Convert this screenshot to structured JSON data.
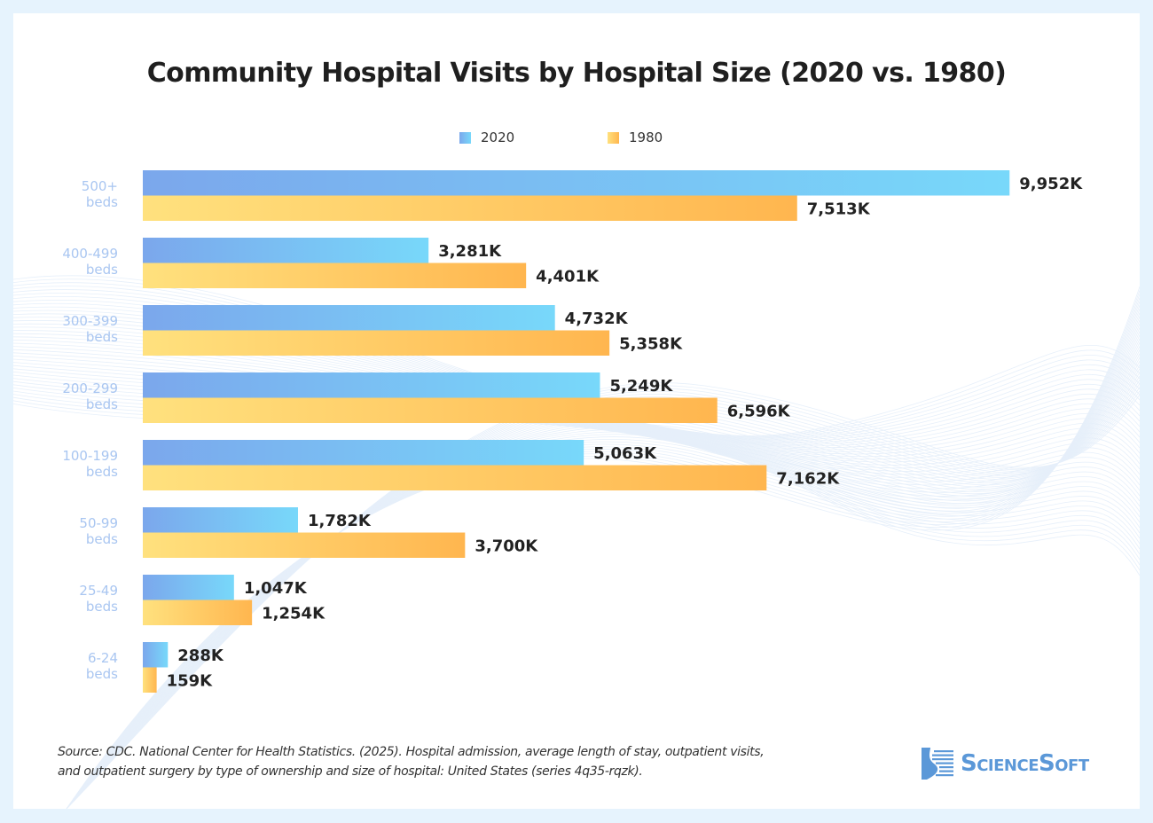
{
  "chart_data": {
    "type": "bar",
    "orientation": "horizontal",
    "title": "Community Hospital Visits by Hospital Size (2020 vs. 1980)",
    "xlabel": "",
    "ylabel": "",
    "unit_suffix": "K",
    "categories": [
      "500+ beds",
      "400-499 beds",
      "300-399 beds",
      "200-299 beds",
      "100-199 beds",
      "50-99 beds",
      "25-49 beds",
      "6-24 beds"
    ],
    "category_lines": [
      [
        "500+",
        "beds"
      ],
      [
        "400-499",
        "beds"
      ],
      [
        "300-399",
        "beds"
      ],
      [
        "200-299",
        "beds"
      ],
      [
        "100-199",
        "beds"
      ],
      [
        "50-99",
        "beds"
      ],
      [
        "25-49",
        "beds"
      ],
      [
        "6-24",
        "beds"
      ]
    ],
    "series": [
      {
        "name": "2020",
        "values": [
          9952,
          3281,
          4732,
          5249,
          5063,
          1782,
          1047,
          288
        ],
        "labels": [
          "9,952K",
          "3,281K",
          "4,732K",
          "5,249K",
          "5,063K",
          "1,782K",
          "1,047K",
          "288K"
        ],
        "color_start": "#7BA7EC",
        "color_end": "#78D8FA"
      },
      {
        "name": "1980",
        "values": [
          7513,
          4401,
          5358,
          6596,
          7162,
          3700,
          1254,
          159
        ],
        "labels": [
          "7,513K",
          "4,401K",
          "5,358K",
          "6,596K",
          "7,162K",
          "3,700K",
          "1,254K",
          "159K"
        ],
        "color_start": "#FFE17E",
        "color_end": "#FFB64F"
      }
    ],
    "xlim": [
      0,
      10000
    ],
    "grid": false,
    "legend_position": "top-center"
  },
  "legend": {
    "items": [
      {
        "label": "2020"
      },
      {
        "label": "1980"
      }
    ]
  },
  "footer": {
    "source_line1": "Source: CDC. National Center for Health Statistics. (2025). Hospital admission, average length of stay, outpatient visits,",
    "source_line2": "and outpatient surgery by type of ownership and size of hospital: United States (series 4q35-rqzk).",
    "logo_text": "ScienceSoft"
  },
  "colors": {
    "background": "#E6F3FD",
    "title": "#1F1F1F",
    "category_label": "#A9C6F1",
    "logo": "#5B98D8"
  }
}
